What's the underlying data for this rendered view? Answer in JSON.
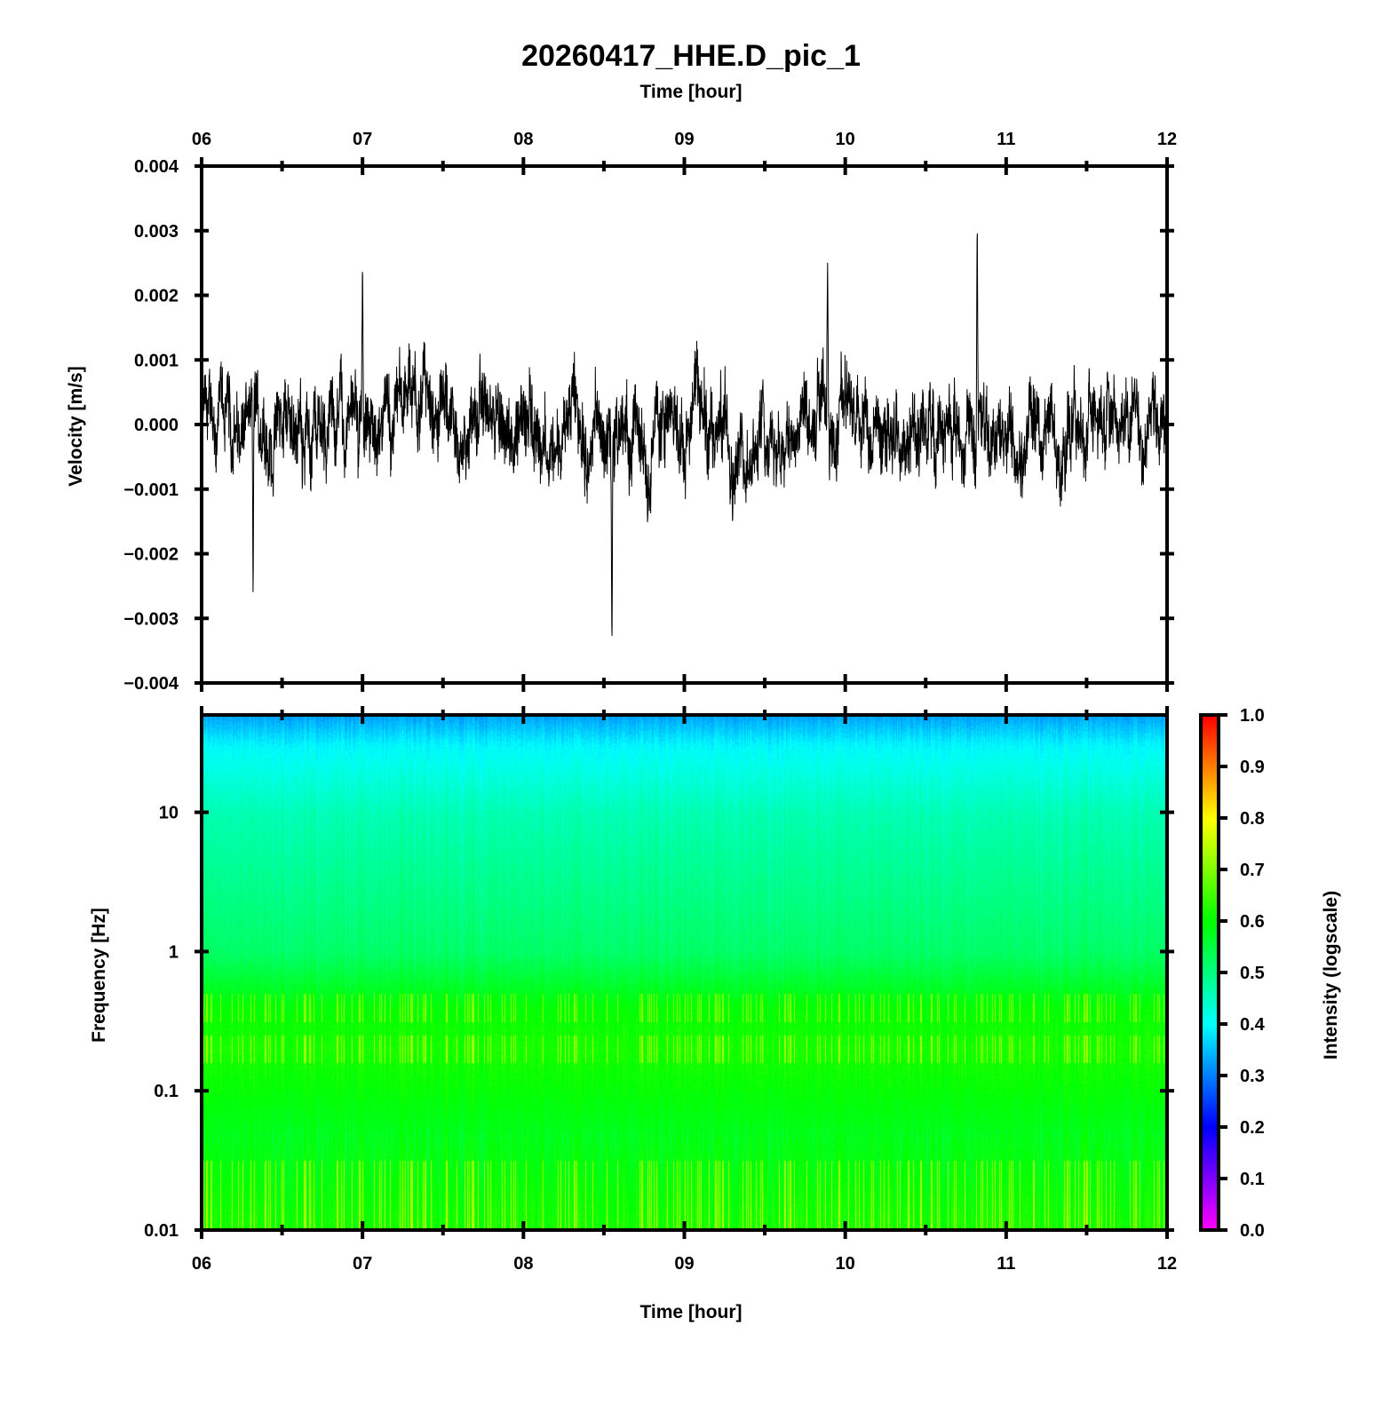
{
  "chart_data": [
    {
      "type": "line",
      "title": "20260417_HHE.D_pic_1",
      "top_xlabel": "Time [hour]",
      "ylabel": "Velocity [m/s]",
      "xlim": [
        6,
        12
      ],
      "ylim": [
        -0.004,
        0.004
      ],
      "x_ticks": [
        "06",
        "07",
        "08",
        "09",
        "10",
        "11",
        "12"
      ],
      "y_ticks": [
        "0.004",
        "0.003",
        "0.002",
        "0.001",
        "0.000",
        "−0.001",
        "−0.002",
        "−0.003",
        "−0.004"
      ],
      "y_tick_values": [
        0.004,
        0.003,
        0.002,
        0.001,
        0,
        -0.001,
        -0.002,
        -0.003,
        -0.004
      ],
      "series_color": "#000000",
      "noise_amplitude": 0.0009,
      "notable_points": [
        {
          "x": 10.82,
          "y": 0.00335
        },
        {
          "x": 8.55,
          "y": -0.0036
        },
        {
          "x": 7.0,
          "y": 0.00265
        },
        {
          "x": 9.89,
          "y": 0.0027
        },
        {
          "x": 6.32,
          "y": -0.0028
        }
      ]
    },
    {
      "type": "heatmap",
      "xlabel": "Time [hour]",
      "ylabel": "Frequency [Hz]",
      "xlim": [
        6,
        12
      ],
      "ylim": [
        0.01,
        50
      ],
      "yscale": "log",
      "x_ticks": [
        "06",
        "07",
        "08",
        "09",
        "10",
        "11",
        "12"
      ],
      "y_ticks": [
        "10",
        "1",
        "0.1",
        "0.01"
      ],
      "y_tick_values": [
        10,
        1,
        0.1,
        0.01
      ],
      "intensity_profile": [
        {
          "freq": 50,
          "intensity": 0.33
        },
        {
          "freq": 30,
          "intensity": 0.4
        },
        {
          "freq": 10,
          "intensity": 0.46
        },
        {
          "freq": 1,
          "intensity": 0.52
        },
        {
          "freq": 0.4,
          "intensity": 0.6
        },
        {
          "freq": 0.2,
          "intensity": 0.62
        },
        {
          "freq": 0.05,
          "intensity": 0.58
        },
        {
          "freq": 0.01,
          "intensity": 0.62
        }
      ],
      "colorbar": {
        "label": "Intensity (logscale)",
        "range": [
          0,
          1
        ],
        "ticks": [
          "1.0",
          "0.9",
          "0.8",
          "0.7",
          "0.6",
          "0.5",
          "0.4",
          "0.3",
          "0.2",
          "0.1",
          "0.0"
        ],
        "tick_values": [
          1,
          0.9,
          0.8,
          0.7,
          0.6,
          0.5,
          0.4,
          0.3,
          0.2,
          0.1,
          0
        ],
        "colors": [
          "#ff00ff",
          "#0000ff",
          "#00ffff",
          "#00ff00",
          "#ffff00",
          "#ff0000"
        ]
      }
    }
  ]
}
